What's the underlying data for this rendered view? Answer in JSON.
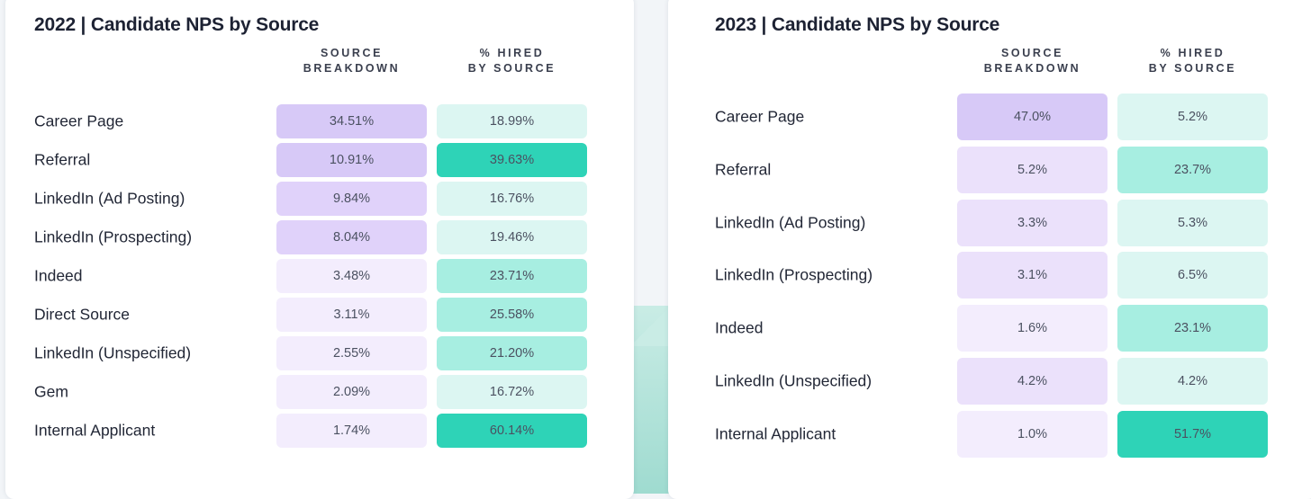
{
  "colors": {
    "purple_scale": [
      "#f3edfd",
      "#ebe1fb",
      "#e0d2fa",
      "#d7c9f7"
    ],
    "teal_scale": [
      "#dcf6f2",
      "#a7eee1",
      "#2ed3b7"
    ]
  },
  "panels": [
    {
      "title": "2022 | Candidate NPS by Source",
      "columns": [
        "SOURCE\nBREAKDOWN",
        "% HIRED\nBY SOURCE"
      ],
      "rows": [
        {
          "label": "Career Page",
          "breakdown": "34.51%",
          "hired": "18.99%",
          "breakdown_level": 3,
          "hired_level": 0
        },
        {
          "label": "Referral",
          "breakdown": "10.91%",
          "hired": "39.63%",
          "breakdown_level": 3,
          "hired_level": 2
        },
        {
          "label": "LinkedIn (Ad Posting)",
          "breakdown": "9.84%",
          "hired": "16.76%",
          "breakdown_level": 2,
          "hired_level": 0
        },
        {
          "label": "LinkedIn (Prospecting)",
          "breakdown": "8.04%",
          "hired": "19.46%",
          "breakdown_level": 2,
          "hired_level": 0
        },
        {
          "label": "Indeed",
          "breakdown": "3.48%",
          "hired": "23.71%",
          "breakdown_level": 0,
          "hired_level": 1
        },
        {
          "label": "Direct Source",
          "breakdown": "3.11%",
          "hired": "25.58%",
          "breakdown_level": 0,
          "hired_level": 1
        },
        {
          "label": "LinkedIn (Unspecified)",
          "breakdown": "2.55%",
          "hired": "21.20%",
          "breakdown_level": 0,
          "hired_level": 1
        },
        {
          "label": "Gem",
          "breakdown": "2.09%",
          "hired": "16.72%",
          "breakdown_level": 0,
          "hired_level": 0
        },
        {
          "label": "Internal Applicant",
          "breakdown": "1.74%",
          "hired": "60.14%",
          "breakdown_level": 0,
          "hired_level": 2
        }
      ]
    },
    {
      "title": "2023 | Candidate NPS by Source",
      "columns": [
        "SOURCE\nBREAKDOWN",
        "% HIRED\nBY SOURCE"
      ],
      "rows": [
        {
          "label": "Career Page",
          "breakdown": "47.0%",
          "hired": "5.2%",
          "breakdown_level": 3,
          "hired_level": 0
        },
        {
          "label": "Referral",
          "breakdown": "5.2%",
          "hired": "23.7%",
          "breakdown_level": 1,
          "hired_level": 1
        },
        {
          "label": "LinkedIn (Ad Posting)",
          "breakdown": "3.3%",
          "hired": "5.3%",
          "breakdown_level": 1,
          "hired_level": 0
        },
        {
          "label": "LinkedIn (Prospecting)",
          "breakdown": "3.1%",
          "hired": "6.5%",
          "breakdown_level": 1,
          "hired_level": 0
        },
        {
          "label": "Indeed",
          "breakdown": "1.6%",
          "hired": "23.1%",
          "breakdown_level": 0,
          "hired_level": 1
        },
        {
          "label": "LinkedIn (Unspecified)",
          "breakdown": "4.2%",
          "hired": "4.2%",
          "breakdown_level": 1,
          "hired_level": 0
        },
        {
          "label": "Internal Applicant",
          "breakdown": "1.0%",
          "hired": "51.7%",
          "breakdown_level": 0,
          "hired_level": 2
        }
      ]
    }
  ],
  "chart_data": [
    {
      "type": "table",
      "title": "2022 | Candidate NPS by Source",
      "columns": [
        "SOURCE BREAKDOWN",
        "% HIRED BY SOURCE"
      ],
      "categories": [
        "Career Page",
        "Referral",
        "LinkedIn (Ad Posting)",
        "LinkedIn (Prospecting)",
        "Indeed",
        "Direct Source",
        "LinkedIn (Unspecified)",
        "Gem",
        "Internal Applicant"
      ],
      "series": [
        {
          "name": "SOURCE BREAKDOWN",
          "values": [
            34.51,
            10.91,
            9.84,
            8.04,
            3.48,
            3.11,
            2.55,
            2.09,
            1.74
          ]
        },
        {
          "name": "% HIRED BY SOURCE",
          "values": [
            18.99,
            39.63,
            16.76,
            19.46,
            23.71,
            25.58,
            21.2,
            16.72,
            60.14
          ]
        }
      ]
    },
    {
      "type": "table",
      "title": "2023 | Candidate NPS by Source",
      "columns": [
        "SOURCE BREAKDOWN",
        "% HIRED BY SOURCE"
      ],
      "categories": [
        "Career Page",
        "Referral",
        "LinkedIn (Ad Posting)",
        "LinkedIn (Prospecting)",
        "Indeed",
        "LinkedIn (Unspecified)",
        "Internal Applicant"
      ],
      "series": [
        {
          "name": "SOURCE BREAKDOWN",
          "values": [
            47.0,
            5.2,
            3.3,
            3.1,
            1.6,
            4.2,
            1.0
          ]
        },
        {
          "name": "% HIRED BY SOURCE",
          "values": [
            5.2,
            23.7,
            5.3,
            6.5,
            23.1,
            4.2,
            51.7
          ]
        }
      ]
    }
  ]
}
